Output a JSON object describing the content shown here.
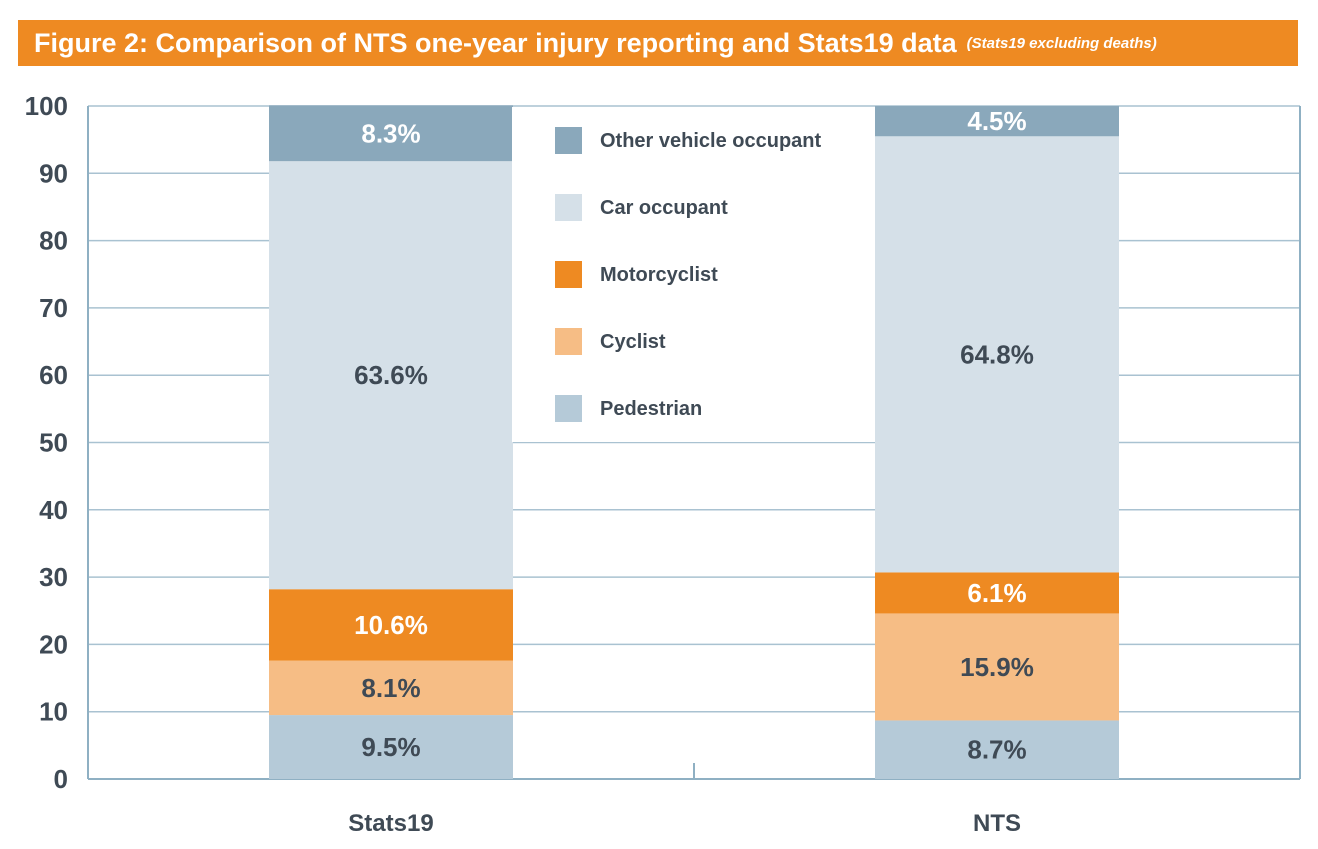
{
  "title": "Figure 2: Comparison of NTS one-year injury reporting and Stats19 data",
  "subtitle": "(Stats19 excluding deaths)",
  "chart_data": {
    "type": "bar",
    "stacked": true,
    "title": "Figure 2: Comparison of NTS one-year injury reporting and Stats19 data",
    "subtitle": "(Stats19 excluding deaths)",
    "categories": [
      "Stats19",
      "NTS"
    ],
    "ylim": [
      0,
      100
    ],
    "yticks": [
      "0",
      "10",
      "20",
      "30",
      "40",
      "50",
      "60",
      "70",
      "80",
      "90",
      "100"
    ],
    "grid": true,
    "legend_position": "top-center",
    "series": [
      {
        "name": "Pedestrian",
        "values": [
          9.5,
          8.7
        ],
        "labels": [
          "9.5%",
          "8.7%"
        ],
        "color": "#b5cad8",
        "label_color": "#3f4a55"
      },
      {
        "name": "Cyclist",
        "values": [
          8.1,
          15.9
        ],
        "labels": [
          "8.1%",
          "15.9%"
        ],
        "color": "#f6bd85",
        "label_color": "#3f4a55"
      },
      {
        "name": "Motorcyclist",
        "values": [
          10.6,
          6.1
        ],
        "labels": [
          "10.6%",
          "6.1%"
        ],
        "color": "#ee8a22",
        "label_color": "#ffffff"
      },
      {
        "name": "Car occupant",
        "values": [
          63.6,
          64.8
        ],
        "labels": [
          "63.6%",
          "64.8%"
        ],
        "color": "#d5e0e8",
        "label_color": "#3f4a55"
      },
      {
        "name": "Other vehicle occupant",
        "values": [
          8.3,
          4.5
        ],
        "labels": [
          "8.3%",
          "4.5%"
        ],
        "color": "#8aa8bb",
        "label_color": "#ffffff"
      }
    ],
    "legend_order": [
      "Other vehicle occupant",
      "Car occupant",
      "Motorcyclist",
      "Cyclist",
      "Pedestrian"
    ]
  },
  "colors": {
    "title_bar": "#ee8a22",
    "axis": "#8fb0c3",
    "grid": "#a9c2d1",
    "text": "#3f4a55"
  }
}
